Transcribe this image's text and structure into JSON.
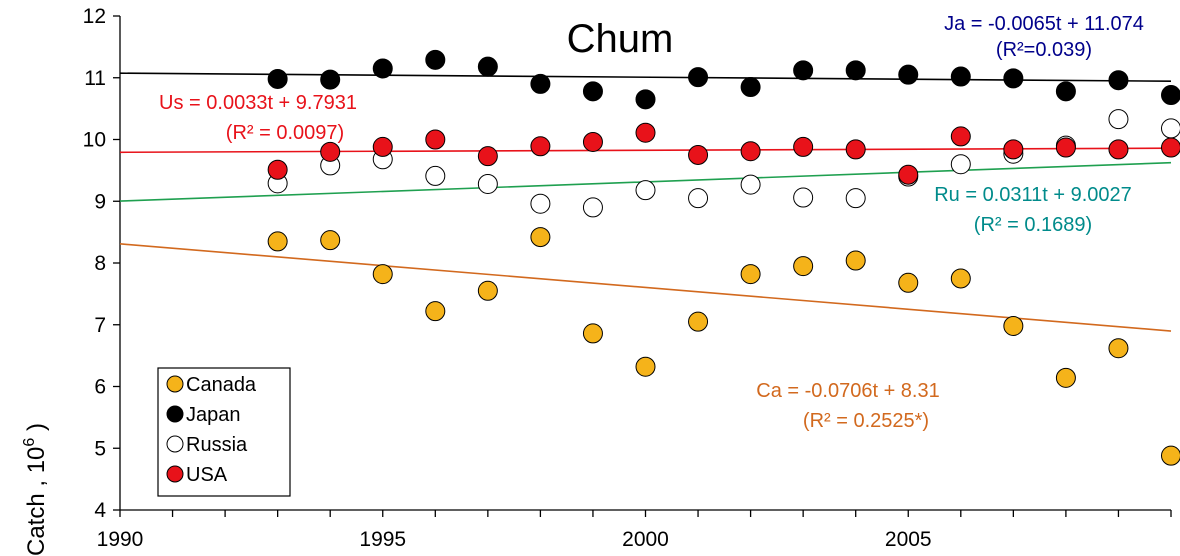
{
  "chart_data": {
    "type": "scatter",
    "title": "Chum",
    "ylabel": "Catch , 10",
    "ylabel_sup": "6",
    "ylabel_close": " )",
    "xlim": [
      1990,
      2010
    ],
    "ylim": [
      4,
      12
    ],
    "x_ticks": [
      "1990",
      "1995",
      "2000",
      "2005"
    ],
    "x_tick_values": [
      1990,
      1995,
      2000,
      2005
    ],
    "y_ticks": [
      "4",
      "5",
      "6",
      "7",
      "8",
      "9",
      "10",
      "11",
      "12"
    ],
    "y_tick_values": [
      4,
      5,
      6,
      7,
      8,
      9,
      10,
      11,
      12
    ],
    "grid": false,
    "legend_position": "bottom-left",
    "series": [
      {
        "name": "Canada",
        "color": "#f5b31a",
        "x": [
          1993,
          1994,
          1995,
          1996,
          1997,
          1998,
          1999,
          2000,
          2001,
          2002,
          2003,
          2004,
          2005,
          2006,
          2007,
          2008,
          2009,
          2010
        ],
        "y": [
          8.35,
          8.37,
          7.82,
          7.22,
          7.55,
          8.42,
          6.86,
          6.32,
          7.05,
          7.82,
          7.95,
          8.04,
          7.68,
          7.75,
          6.98,
          6.14,
          6.62,
          4.88
        ]
      },
      {
        "name": "Japan",
        "color": "#000000",
        "x": [
          1993,
          1994,
          1995,
          1996,
          1997,
          1998,
          1999,
          2000,
          2001,
          2002,
          2003,
          2004,
          2005,
          2006,
          2007,
          2008,
          2009,
          2010
        ],
        "y": [
          10.98,
          10.97,
          11.15,
          11.29,
          11.18,
          10.9,
          10.78,
          10.65,
          11.01,
          10.85,
          11.12,
          11.12,
          11.05,
          11.02,
          10.99,
          10.78,
          10.96,
          10.72
        ]
      },
      {
        "name": "Russia",
        "color": "#ffffff",
        "x": [
          1993,
          1994,
          1995,
          1996,
          1997,
          1998,
          1999,
          2000,
          2001,
          2002,
          2003,
          2004,
          2005,
          2006,
          2007,
          2008,
          2009,
          2010
        ],
        "y": [
          9.29,
          9.58,
          9.68,
          9.41,
          9.28,
          8.96,
          8.9,
          9.18,
          9.05,
          9.27,
          9.06,
          9.05,
          9.4,
          9.6,
          9.77,
          9.9,
          10.33,
          10.18
        ]
      },
      {
        "name": "USA",
        "color": "#e8121a",
        "x": [
          1993,
          1994,
          1995,
          1996,
          1997,
          1998,
          1999,
          2000,
          2001,
          2002,
          2003,
          2004,
          2005,
          2006,
          2007,
          2008,
          2009,
          2010
        ],
        "y": [
          9.51,
          9.8,
          9.88,
          10.0,
          9.73,
          9.89,
          9.96,
          10.11,
          9.75,
          9.81,
          9.88,
          9.84,
          9.43,
          10.05,
          9.84,
          9.87,
          9.84,
          9.87
        ]
      }
    ],
    "trendlines": [
      {
        "name": "Japan",
        "color": "#000000",
        "slope": -0.0065,
        "intercept": 11.074,
        "text": "Ja = -0.0065t + 11.074",
        "r2_text": "(R²=0.039)",
        "text_color": "#00008b"
      },
      {
        "name": "USA",
        "color": "#e8121a",
        "slope": 0.0033,
        "intercept": 9.7931,
        "text": "Us = 0.0033t + 9.7931",
        "r2_text": "(R² = 0.0097)",
        "text_color": "#e8121a"
      },
      {
        "name": "Russia",
        "color": "#1fa050",
        "slope": 0.0311,
        "intercept": 9.0027,
        "text": "Ru = 0.0311t + 9.0027",
        "r2_text": "(R² = 0.1689)",
        "text_color": "#008b8b"
      },
      {
        "name": "Canada",
        "color": "#d2691e",
        "slope": -0.0706,
        "intercept": 8.31,
        "text": "Ca = -0.0706t + 8.31",
        "r2_text": "(R² = 0.2525*)",
        "text_color": "#d2691e"
      }
    ]
  }
}
